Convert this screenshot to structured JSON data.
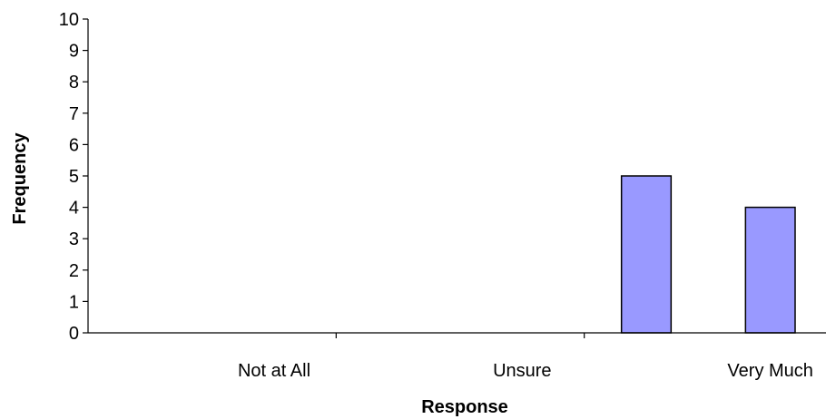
{
  "chart_data": {
    "type": "bar",
    "categories": [
      "",
      "Not at All",
      "",
      "Unsure",
      "",
      "Very Much"
    ],
    "values": [
      0,
      0,
      0,
      0,
      5,
      4
    ],
    "xlabel": "Response",
    "ylabel": "Frequency",
    "ylim": [
      0,
      10
    ],
    "yticks": [
      0,
      1,
      2,
      3,
      4,
      5,
      6,
      7,
      8,
      9,
      10
    ],
    "grid": false,
    "legend": "none",
    "colors": {
      "bar_fill": "#9999ff",
      "bar_stroke": "#000000",
      "axis": "#000000"
    }
  }
}
